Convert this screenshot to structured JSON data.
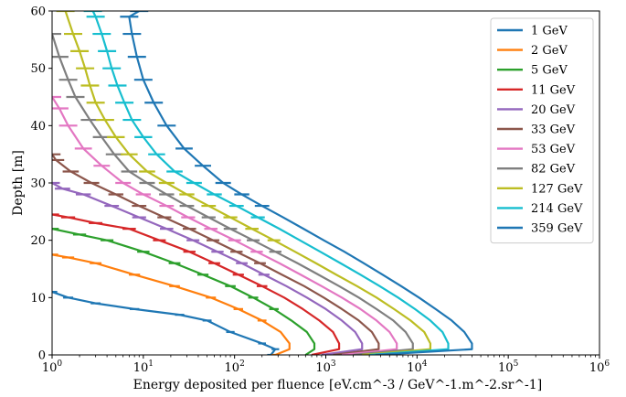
{
  "chart_data": {
    "type": "line",
    "xscale": "log",
    "xlim": [
      1,
      1000000
    ],
    "ylim": [
      0,
      60
    ],
    "xlabel": "Energy deposited per fluence",
    "xlabel_unit": "[eV.cm^-3 / GeV^-1.m^-2.sr^-1]",
    "ylabel": "Depth [m]",
    "xtick_labels": [
      "10^0",
      "10^1",
      "10^2",
      "10^3",
      "10^4",
      "10^5",
      "10^6"
    ],
    "ytick_labels": [
      "0",
      "10",
      "20",
      "30",
      "40",
      "50",
      "60"
    ],
    "legend_position": "top-right",
    "error_bars": true,
    "series": [
      {
        "name": "1 GeV",
        "color": "#1f77b4",
        "points": [
          [
            250,
            0
          ],
          [
            280,
            1
          ],
          [
            200,
            2
          ],
          [
            90,
            4
          ],
          [
            50,
            6
          ],
          [
            25,
            7
          ],
          [
            8,
            8
          ],
          [
            3,
            9
          ],
          [
            1.5,
            10
          ],
          [
            1,
            11
          ]
        ]
      },
      {
        "name": "2 GeV",
        "color": "#ff7f0e",
        "points": [
          [
            280,
            0
          ],
          [
            400,
            1
          ],
          [
            400,
            2
          ],
          [
            320,
            4
          ],
          [
            200,
            6
          ],
          [
            110,
            8
          ],
          [
            55,
            10
          ],
          [
            22,
            12
          ],
          [
            8,
            14
          ],
          [
            3,
            16
          ],
          [
            1.5,
            17
          ],
          [
            1,
            17.5
          ]
        ]
      },
      {
        "name": "5 GeV",
        "color": "#2ca02c",
        "points": [
          [
            600,
            0
          ],
          [
            750,
            1
          ],
          [
            750,
            2
          ],
          [
            620,
            4
          ],
          [
            420,
            6
          ],
          [
            270,
            8
          ],
          [
            160,
            10
          ],
          [
            90,
            12
          ],
          [
            45,
            14
          ],
          [
            22,
            16
          ],
          [
            10,
            18
          ],
          [
            4,
            20
          ],
          [
            2,
            21
          ],
          [
            1,
            22
          ]
        ]
      },
      {
        "name": "11 GeV",
        "color": "#d62728",
        "points": [
          [
            700,
            0
          ],
          [
            1400,
            1
          ],
          [
            1400,
            2
          ],
          [
            1200,
            4
          ],
          [
            850,
            6
          ],
          [
            560,
            8
          ],
          [
            350,
            10
          ],
          [
            200,
            12
          ],
          [
            110,
            14
          ],
          [
            60,
            16
          ],
          [
            32,
            18
          ],
          [
            15,
            20
          ],
          [
            7,
            22
          ],
          [
            3,
            23
          ],
          [
            1.5,
            24
          ],
          [
            1,
            24.5
          ]
        ]
      },
      {
        "name": "20 GeV",
        "color": "#9467bd",
        "points": [
          [
            900,
            0
          ],
          [
            2500,
            1
          ],
          [
            2500,
            2
          ],
          [
            2100,
            4
          ],
          [
            1500,
            6
          ],
          [
            1000,
            8
          ],
          [
            620,
            10
          ],
          [
            370,
            12
          ],
          [
            210,
            14
          ],
          [
            120,
            16
          ],
          [
            65,
            18
          ],
          [
            35,
            20
          ],
          [
            18,
            22
          ],
          [
            9,
            24
          ],
          [
            4.5,
            26
          ],
          [
            2.2,
            28
          ],
          [
            1.3,
            29
          ],
          [
            1,
            30
          ]
        ]
      },
      {
        "name": "33 GeV",
        "color": "#8c564b",
        "points": [
          [
            1200,
            0
          ],
          [
            3800,
            1
          ],
          [
            3800,
            2
          ],
          [
            3200,
            4
          ],
          [
            2300,
            6
          ],
          [
            1500,
            8
          ],
          [
            950,
            10
          ],
          [
            580,
            12
          ],
          [
            330,
            14
          ],
          [
            190,
            16
          ],
          [
            105,
            18
          ],
          [
            58,
            20
          ],
          [
            32,
            22
          ],
          [
            17,
            24
          ],
          [
            9,
            26
          ],
          [
            5,
            28
          ],
          [
            2.7,
            30
          ],
          [
            1.6,
            32
          ],
          [
            1.1,
            34
          ],
          [
            1,
            35
          ]
        ]
      },
      {
        "name": "53 GeV",
        "color": "#e377c2",
        "points": [
          [
            1500,
            0
          ],
          [
            6000,
            1
          ],
          [
            6000,
            2
          ],
          [
            5000,
            4
          ],
          [
            3600,
            6
          ],
          [
            2400,
            8
          ],
          [
            1500,
            10
          ],
          [
            900,
            12
          ],
          [
            530,
            14
          ],
          [
            310,
            16
          ],
          [
            175,
            18
          ],
          [
            100,
            20
          ],
          [
            55,
            22
          ],
          [
            31,
            24
          ],
          [
            18,
            26
          ],
          [
            10,
            28
          ],
          [
            6,
            30
          ],
          [
            3.5,
            33
          ],
          [
            2.2,
            36
          ],
          [
            1.5,
            40
          ],
          [
            1.2,
            43
          ],
          [
            1,
            45
          ]
        ]
      },
      {
        "name": "82 GeV",
        "color": "#7f7f7f",
        "points": [
          [
            2000,
            0
          ],
          [
            9000,
            1
          ],
          [
            9000,
            2
          ],
          [
            7500,
            4
          ],
          [
            5500,
            6
          ],
          [
            3600,
            8
          ],
          [
            2300,
            10
          ],
          [
            1400,
            12
          ],
          [
            830,
            14
          ],
          [
            490,
            16
          ],
          [
            280,
            18
          ],
          [
            160,
            20
          ],
          [
            90,
            22
          ],
          [
            52,
            24
          ],
          [
            30,
            26
          ],
          [
            18,
            28
          ],
          [
            11,
            30
          ],
          [
            7,
            32
          ],
          [
            4.8,
            35
          ],
          [
            3.5,
            38
          ],
          [
            2.6,
            41
          ],
          [
            1.8,
            45
          ],
          [
            1.5,
            48
          ],
          [
            1.2,
            52
          ],
          [
            1,
            56
          ]
        ]
      },
      {
        "name": "127 GeV",
        "color": "#bcbd22",
        "points": [
          [
            2500,
            0
          ],
          [
            14000,
            1
          ],
          [
            14000,
            2
          ],
          [
            12000,
            4
          ],
          [
            8500,
            6
          ],
          [
            5600,
            8
          ],
          [
            3600,
            10
          ],
          [
            2200,
            12
          ],
          [
            1300,
            14
          ],
          [
            780,
            16
          ],
          [
            460,
            18
          ],
          [
            270,
            20
          ],
          [
            155,
            22
          ],
          [
            90,
            24
          ],
          [
            52,
            26
          ],
          [
            30,
            28
          ],
          [
            18,
            30
          ],
          [
            11,
            32
          ],
          [
            7,
            35
          ],
          [
            5,
            38
          ],
          [
            3.8,
            41
          ],
          [
            3,
            44
          ],
          [
            2.6,
            47
          ],
          [
            2.3,
            50
          ],
          [
            2,
            53
          ],
          [
            1.7,
            56
          ],
          [
            1.4,
            60
          ]
        ]
      },
      {
        "name": "214 GeV",
        "color": "#17becf",
        "points": [
          [
            3000,
            0
          ],
          [
            22000,
            1
          ],
          [
            22000,
            2
          ],
          [
            19000,
            4
          ],
          [
            14000,
            6
          ],
          [
            9500,
            8
          ],
          [
            6200,
            10
          ],
          [
            3900,
            12
          ],
          [
            2400,
            14
          ],
          [
            1450,
            16
          ],
          [
            870,
            18
          ],
          [
            520,
            20
          ],
          [
            310,
            22
          ],
          [
            180,
            24
          ],
          [
            105,
            26
          ],
          [
            60,
            28
          ],
          [
            36,
            30
          ],
          [
            22,
            32
          ],
          [
            14,
            35
          ],
          [
            10,
            38
          ],
          [
            7.5,
            41
          ],
          [
            6.2,
            44
          ],
          [
            5.2,
            47
          ],
          [
            4.5,
            50
          ],
          [
            4,
            53
          ],
          [
            3.5,
            56
          ],
          [
            3,
            59
          ],
          [
            2.8,
            60
          ]
        ]
      },
      {
        "name": "359 GeV",
        "color": "#1f77b4",
        "points": [
          [
            3500,
            0
          ],
          [
            40000,
            1
          ],
          [
            40000,
            2
          ],
          [
            33000,
            4
          ],
          [
            24000,
            6
          ],
          [
            16000,
            8
          ],
          [
            10500,
            10
          ],
          [
            6700,
            12
          ],
          [
            4200,
            14
          ],
          [
            2600,
            16
          ],
          [
            1600,
            18
          ],
          [
            950,
            20
          ],
          [
            570,
            22
          ],
          [
            340,
            24
          ],
          [
            200,
            26
          ],
          [
            120,
            28
          ],
          [
            75,
            30
          ],
          [
            45,
            33
          ],
          [
            28,
            36
          ],
          [
            18,
            40
          ],
          [
            13,
            44
          ],
          [
            10,
            48
          ],
          [
            8.5,
            52
          ],
          [
            7.5,
            56
          ],
          [
            7,
            59
          ],
          [
            9,
            60
          ]
        ]
      }
    ]
  }
}
